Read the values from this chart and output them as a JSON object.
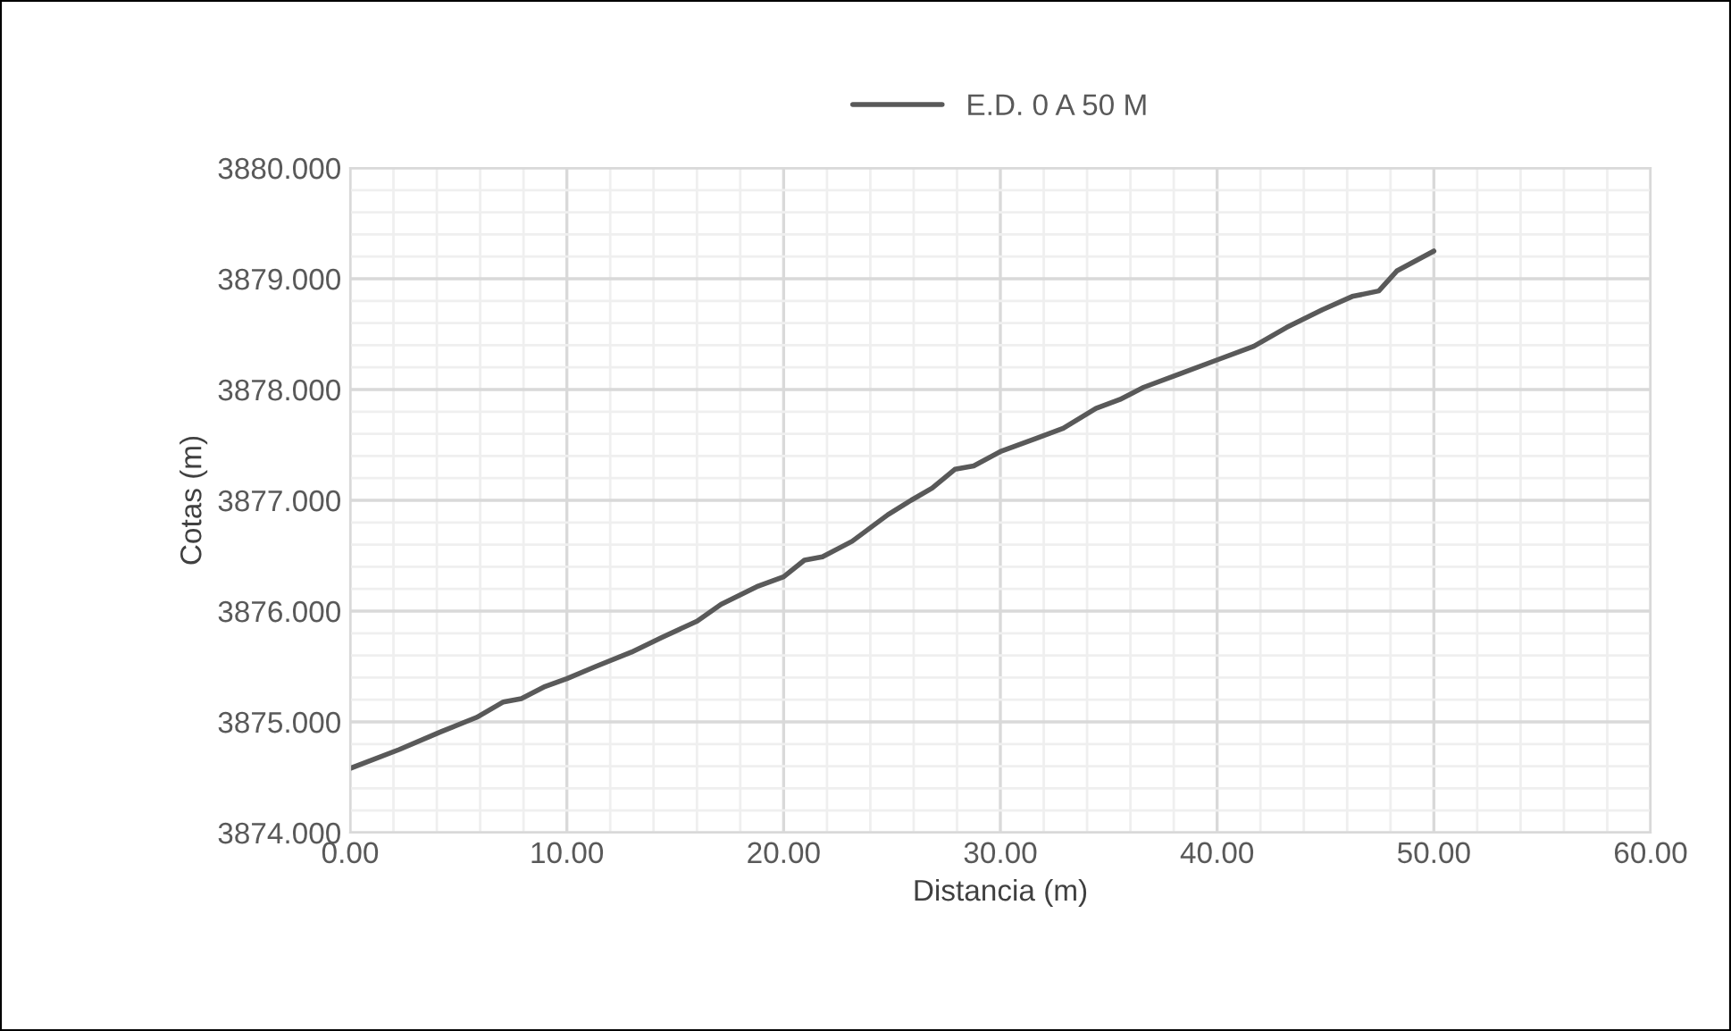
{
  "chart_data": {
    "type": "line",
    "xlabel": "Distancia (m)",
    "ylabel": "Cotas (m)",
    "series": [
      {
        "name": "E.D. 0 A 50 M",
        "color": "#595959",
        "x": [
          0,
          2.26,
          4.18,
          5.83,
          7.07,
          7.9,
          9.0,
          10.0,
          11.33,
          12.98,
          14.36,
          16.01,
          17.11,
          18.76,
          20.0,
          20.96,
          21.79,
          23.16,
          24.81,
          25.88,
          26.85,
          27.9,
          28.77,
          30.0,
          31.66,
          32.9,
          34.41,
          35.51,
          36.61,
          38.26,
          39.9,
          41.69,
          43.2,
          44.85,
          46.23,
          47.46,
          48.29,
          50.0
        ],
        "values": [
          3874.58,
          3874.75,
          3874.91,
          3875.04,
          3875.18,
          3875.21,
          3875.32,
          3875.39,
          3875.5,
          3875.63,
          3875.76,
          3875.91,
          3876.06,
          3876.22,
          3876.31,
          3876.46,
          3876.49,
          3876.63,
          3876.87,
          3877.0,
          3877.11,
          3877.28,
          3877.31,
          3877.44,
          3877.56,
          3877.65,
          3877.83,
          3877.91,
          3878.02,
          3878.14,
          3878.26,
          3878.39,
          3878.56,
          3878.72,
          3878.84,
          3878.89,
          3879.07,
          3879.25
        ]
      }
    ],
    "xlim": [
      0,
      60
    ],
    "ylim": [
      3874,
      3880
    ],
    "xticks": [
      {
        "value": 0,
        "label": "0.00"
      },
      {
        "value": 10,
        "label": "10.00"
      },
      {
        "value": 20,
        "label": "20.00"
      },
      {
        "value": 30,
        "label": "30.00"
      },
      {
        "value": 40,
        "label": "40.00"
      },
      {
        "value": 50,
        "label": "50.00"
      },
      {
        "value": 60,
        "label": "60.00"
      }
    ],
    "yticks": [
      {
        "value": 3874,
        "label": "3874.000"
      },
      {
        "value": 3875,
        "label": "3875.000"
      },
      {
        "value": 3876,
        "label": "3876.000"
      },
      {
        "value": 3877,
        "label": "3877.000"
      },
      {
        "value": 3878,
        "label": "3878.000"
      },
      {
        "value": 3879,
        "label": "3879.000"
      },
      {
        "value": 3880,
        "label": "3880.000"
      }
    ],
    "grid": true,
    "legend": "top",
    "marker": "none",
    "line_style": "solid"
  }
}
